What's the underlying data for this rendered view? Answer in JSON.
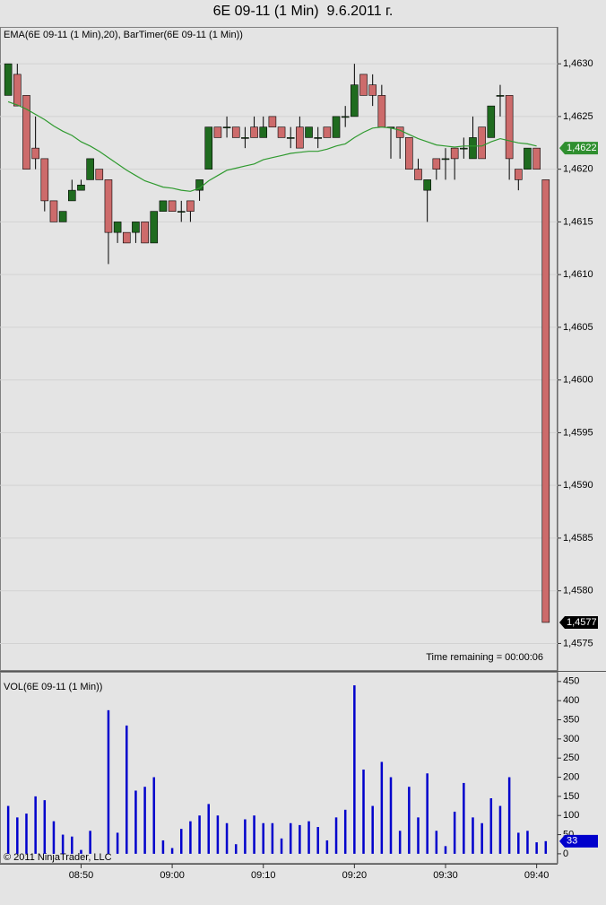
{
  "title": "6E 09-11 (1 Min)  9.6.2011 г.",
  "copyright": "© 2011 NinjaTrader, LLC",
  "chart_data": [
    {
      "type": "candlestick",
      "label": "EMA(6E 09-11 (1 Min),20), BarTimer(6E 09-11 (1 Min))",
      "annotation": "Time remaining = 00:00:06",
      "x": [
        522,
        523,
        524,
        525,
        526,
        527,
        528,
        529,
        530,
        531,
        532,
        533,
        534,
        535,
        536,
        537,
        538,
        539,
        540,
        541,
        542,
        543,
        544,
        545,
        546,
        547,
        548,
        549,
        550,
        551,
        552,
        553,
        554,
        555,
        556,
        557,
        558,
        559,
        560,
        561,
        562,
        563,
        564,
        565,
        566,
        567,
        568,
        569,
        570,
        571,
        572,
        573,
        574,
        575,
        576,
        577,
        578,
        579,
        580,
        581
      ],
      "open": [
        1.4627,
        1.4629,
        1.4627,
        1.4622,
        1.4621,
        1.4617,
        1.4615,
        1.4617,
        1.4618,
        1.4619,
        1.462,
        1.4619,
        1.4614,
        1.4614,
        1.4614,
        1.4615,
        1.4613,
        1.4616,
        1.4617,
        1.4616,
        1.4617,
        1.4618,
        1.462,
        1.4624,
        1.4624,
        1.4624,
        1.4623,
        1.4624,
        1.4623,
        1.4625,
        1.4624,
        1.4623,
        1.4624,
        1.4623,
        1.4623,
        1.4624,
        1.4623,
        1.4625,
        1.4625,
        1.4629,
        1.4628,
        1.4627,
        1.4624,
        1.4624,
        1.4623,
        1.462,
        1.4618,
        1.4621,
        1.4621,
        1.4622,
        1.4622,
        1.4621,
        1.4624,
        1.4623,
        1.4627,
        1.4627,
        1.462,
        1.462,
        1.4622,
        1.4619
      ],
      "high": [
        1.463,
        1.463,
        1.4627,
        1.4625,
        1.4621,
        1.4617,
        1.4616,
        1.4619,
        1.4619,
        1.4621,
        1.462,
        1.4619,
        1.4615,
        1.4614,
        1.4615,
        1.4615,
        1.4616,
        1.4617,
        1.4617,
        1.4617,
        1.4617,
        1.4619,
        1.4624,
        1.4624,
        1.4625,
        1.4624,
        1.4624,
        1.4625,
        1.4625,
        1.4625,
        1.4624,
        1.4624,
        1.4625,
        1.4624,
        1.4624,
        1.4624,
        1.4625,
        1.4626,
        1.463,
        1.4629,
        1.4629,
        1.4628,
        1.4624,
        1.4624,
        1.4623,
        1.4621,
        1.4619,
        1.4621,
        1.4622,
        1.4622,
        1.4623,
        1.4625,
        1.4624,
        1.4626,
        1.4628,
        1.4627,
        1.462,
        1.4622,
        1.4622,
        1.4619
      ],
      "low": [
        1.4627,
        1.4626,
        1.462,
        1.462,
        1.4616,
        1.4615,
        1.4615,
        1.4617,
        1.4618,
        1.4619,
        1.4619,
        1.4611,
        1.4613,
        1.4613,
        1.4613,
        1.4613,
        1.4613,
        1.4616,
        1.4616,
        1.4615,
        1.4615,
        1.4617,
        1.462,
        1.4623,
        1.4623,
        1.4623,
        1.4622,
        1.4623,
        1.4623,
        1.4624,
        1.4623,
        1.4622,
        1.4622,
        1.4623,
        1.4622,
        1.4623,
        1.4623,
        1.4624,
        1.4625,
        1.4627,
        1.4626,
        1.4624,
        1.4621,
        1.4621,
        1.462,
        1.4619,
        1.4615,
        1.4619,
        1.4619,
        1.4619,
        1.4621,
        1.4621,
        1.4621,
        1.4623,
        1.4625,
        1.4619,
        1.4618,
        1.462,
        1.462,
        1.4577
      ],
      "close": [
        1.463,
        1.4626,
        1.462,
        1.4621,
        1.4617,
        1.4615,
        1.4616,
        1.4618,
        1.46185,
        1.4621,
        1.4619,
        1.4614,
        1.4615,
        1.4613,
        1.4615,
        1.4613,
        1.4616,
        1.4617,
        1.4616,
        1.4616,
        1.4616,
        1.4619,
        1.4624,
        1.4623,
        1.4624,
        1.4623,
        1.4623,
        1.4623,
        1.4624,
        1.4624,
        1.4623,
        1.4623,
        1.4622,
        1.4624,
        1.4623,
        1.4623,
        1.4625,
        1.4625,
        1.4628,
        1.4627,
        1.4627,
        1.4624,
        1.4624,
        1.4623,
        1.462,
        1.4619,
        1.4619,
        1.462,
        1.4621,
        1.4621,
        1.4622,
        1.4623,
        1.4621,
        1.4626,
        1.4627,
        1.4621,
        1.4619,
        1.4622,
        1.462,
        1.4577
      ],
      "up_color": "#1f6b1f",
      "down_color": "#cd6b6b",
      "ema": {
        "color": "#2f9a2f",
        "values": [
          1.46264,
          1.46261,
          1.46257,
          1.46252,
          1.46247,
          1.46241,
          1.46236,
          1.46232,
          1.46226,
          1.46222,
          1.46217,
          1.46211,
          1.46205,
          1.46199,
          1.46194,
          1.46189,
          1.46186,
          1.46183,
          1.46182,
          1.4618,
          1.46179,
          1.46182,
          1.46189,
          1.46194,
          1.46199,
          1.46201,
          1.46203,
          1.46205,
          1.46209,
          1.46211,
          1.46213,
          1.46215,
          1.46216,
          1.46217,
          1.46217,
          1.46219,
          1.46222,
          1.46224,
          1.4623,
          1.46235,
          1.46239,
          1.4624,
          1.46239,
          1.46237,
          1.46233,
          1.46229,
          1.46226,
          1.46223,
          1.46222,
          1.46221,
          1.46222,
          1.46222,
          1.46222,
          1.46226,
          1.46229,
          1.46227,
          1.46225,
          1.46224,
          1.46222,
          null
        ]
      },
      "last_labels": [
        {
          "value": 1.4622,
          "label": "1,4622",
          "color": "#2f8f2f"
        },
        {
          "value": 1.4577,
          "label": "1,4577",
          "color": "#000000"
        }
      ],
      "xlim": [
        521.1,
        582.3
      ],
      "ylim": [
        1.45724,
        1.46335
      ],
      "yticks": [
        {
          "value": 1.4575,
          "label": "1,4575"
        },
        {
          "value": 1.458,
          "label": "1,4580"
        },
        {
          "value": 1.4585,
          "label": "1,4585"
        },
        {
          "value": 1.459,
          "label": "1,4590"
        },
        {
          "value": 1.4595,
          "label": "1,4595"
        },
        {
          "value": 1.46,
          "label": "1,4600"
        },
        {
          "value": 1.4605,
          "label": "1,4605"
        },
        {
          "value": 1.461,
          "label": "1,4610"
        },
        {
          "value": 1.4615,
          "label": "1,4615"
        },
        {
          "value": 1.462,
          "label": "1,4620"
        },
        {
          "value": 1.4625,
          "label": "1,4625"
        },
        {
          "value": 1.463,
          "label": "1,4630"
        }
      ],
      "grid": true
    },
    {
      "type": "bar",
      "label": "VOL(6E 09-11 (1 Min))",
      "x": [
        522,
        523,
        524,
        525,
        526,
        527,
        528,
        529,
        530,
        531,
        532,
        533,
        534,
        535,
        536,
        537,
        538,
        539,
        540,
        541,
        542,
        543,
        544,
        545,
        546,
        547,
        548,
        549,
        550,
        551,
        552,
        553,
        554,
        555,
        556,
        557,
        558,
        559,
        560,
        561,
        562,
        563,
        564,
        565,
        566,
        567,
        568,
        569,
        570,
        571,
        572,
        573,
        574,
        575,
        576,
        577,
        578,
        579,
        580,
        581
      ],
      "values": [
        125,
        95,
        105,
        150,
        140,
        85,
        50,
        45,
        10,
        60,
        0,
        375,
        55,
        335,
        165,
        175,
        200,
        35,
        15,
        65,
        85,
        100,
        130,
        100,
        80,
        25,
        90,
        100,
        80,
        80,
        40,
        80,
        75,
        85,
        70,
        35,
        95,
        115,
        440,
        220,
        125,
        240,
        200,
        60,
        175,
        95,
        210,
        60,
        20,
        110,
        185,
        95,
        80,
        145,
        125,
        200,
        55,
        60,
        30,
        33
      ],
      "color": "#0000cc",
      "xlim": [
        521.1,
        582.3
      ],
      "xticks": [
        {
          "value": 530,
          "label": "08:50"
        },
        {
          "value": 540,
          "label": "09:00"
        },
        {
          "value": 550,
          "label": "09:10"
        },
        {
          "value": 560,
          "label": "09:20"
        },
        {
          "value": 570,
          "label": "09:30"
        },
        {
          "value": 580,
          "label": "09:40"
        }
      ],
      "ylim": [
        -26,
        473
      ],
      "yticks": [
        0,
        50,
        100,
        150,
        200,
        250,
        300,
        350,
        400,
        450
      ],
      "grid": false
    }
  ]
}
